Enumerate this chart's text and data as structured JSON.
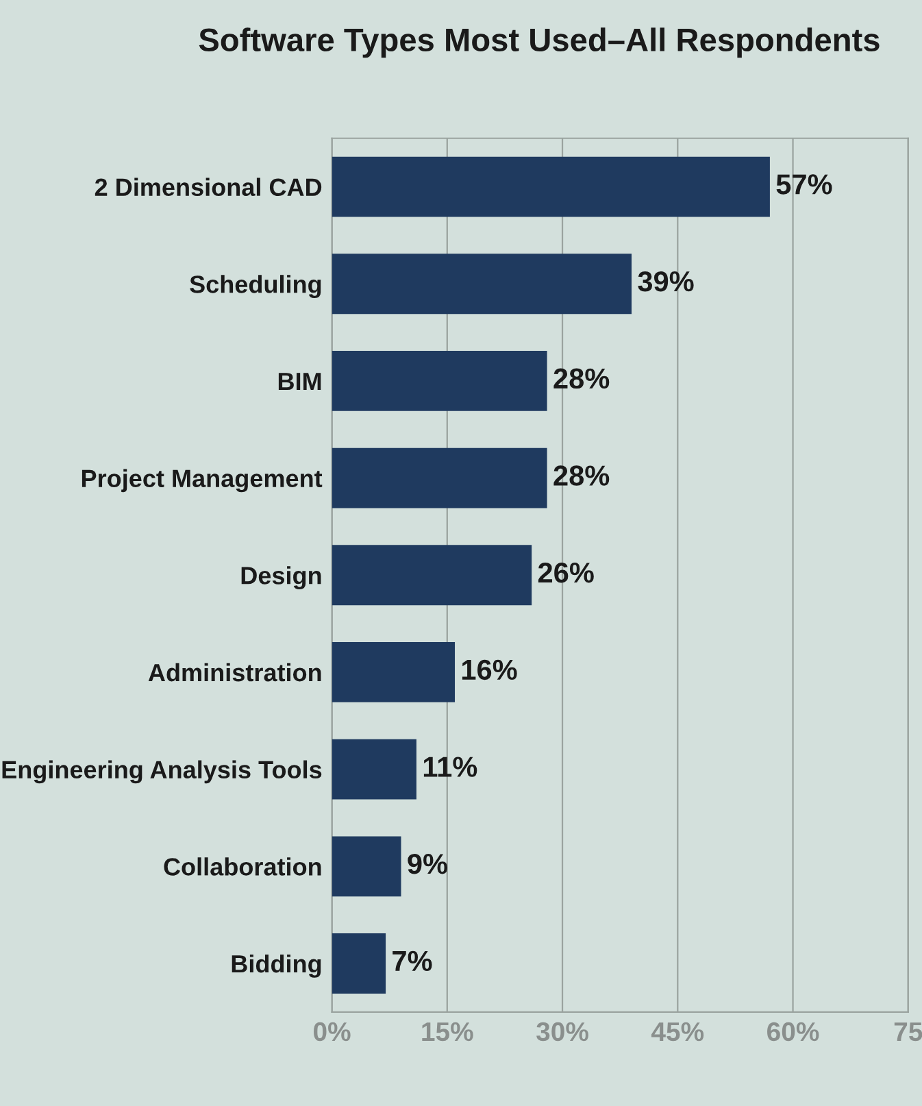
{
  "chart_data": {
    "type": "bar",
    "orientation": "horizontal",
    "title": "Software Types Most Used–All Respondents",
    "categories": [
      "2 Dimensional CAD",
      "Scheduling",
      "BIM",
      "Project Management",
      "Design",
      "Administration",
      "Engineering Analysis Tools",
      "Collaboration",
      "Bidding"
    ],
    "values": [
      57,
      39,
      28,
      28,
      26,
      16,
      11,
      9,
      7
    ],
    "value_labels": [
      "57%",
      "39%",
      "28%",
      "28%",
      "26%",
      "16%",
      "11%",
      "9%",
      "7%"
    ],
    "color": "#1f3a5f",
    "xlim": [
      0,
      75
    ],
    "xticks": [
      {
        "value": 0,
        "label": "0%"
      },
      {
        "value": 15,
        "label": "15%"
      },
      {
        "value": 30,
        "label": "30%"
      },
      {
        "value": 45,
        "label": "45%"
      },
      {
        "value": 60,
        "label": "60%"
      },
      {
        "value": 75,
        "label": "75"
      }
    ],
    "grid": "x"
  }
}
